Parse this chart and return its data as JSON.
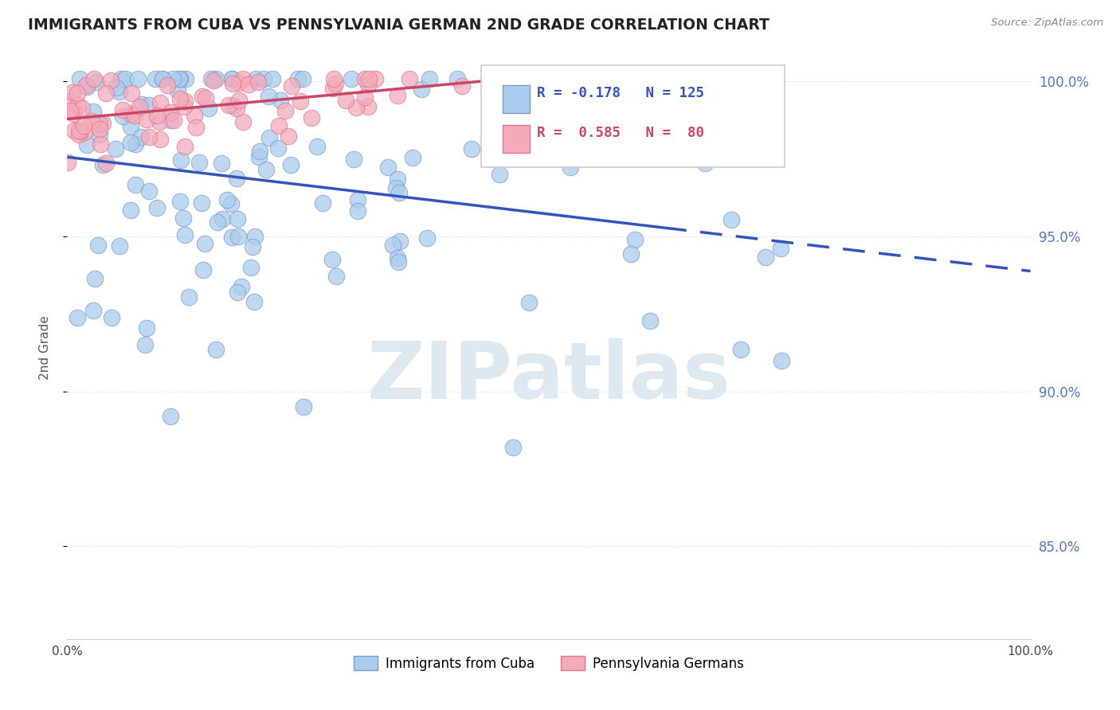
{
  "title": "IMMIGRANTS FROM CUBA VS PENNSYLVANIA GERMAN 2ND GRADE CORRELATION CHART",
  "source": "Source: ZipAtlas.com",
  "ylabel": "2nd Grade",
  "watermark": "ZIPatlas",
  "blue_label": "Immigrants from Cuba",
  "pink_label": "Pennsylvania Germans",
  "blue_R": -0.178,
  "blue_N": 125,
  "pink_R": 0.585,
  "pink_N": 80,
  "blue_color": "#aaccee",
  "pink_color": "#f4aabb",
  "blue_edge": "#7799cc",
  "pink_edge": "#dd7788",
  "trend_blue": "#3355bb",
  "trend_pink": "#cc4466",
  "xmin": 0.0,
  "xmax": 1.0,
  "ymin": 0.82,
  "ymax": 1.008,
  "yticks": [
    0.85,
    0.9,
    0.95,
    1.0
  ],
  "ytick_labels": [
    "85.0%",
    "90.0%",
    "95.0%",
    "100.0%"
  ],
  "background": "#ffffff",
  "grid_color": "#ddeeff",
  "blue_trend_split": 0.62,
  "legend_R_color": "#3355bb",
  "legend_R2_color": "#cc4466"
}
